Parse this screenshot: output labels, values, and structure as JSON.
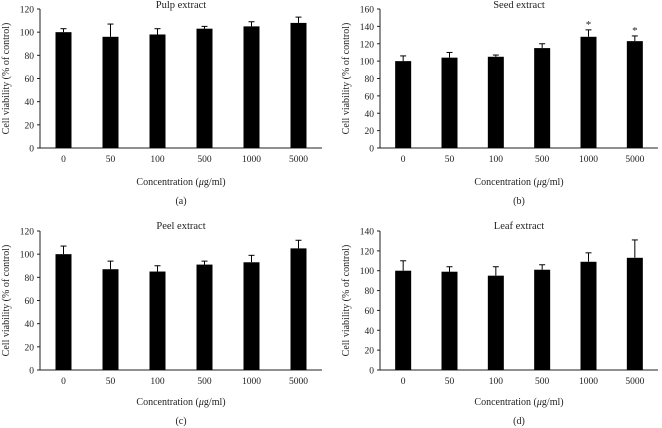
{
  "colors": {
    "bar": "#000000",
    "axis": "#222222",
    "text": "#222222",
    "background": "#ffffff"
  },
  "chart_data": [
    {
      "type": "bar",
      "panel": "(a)",
      "title": "Pulp extract",
      "xlabel": "Concentration (μg/ml)",
      "ylabel": "Cell viability (% of control)",
      "categories": [
        "0",
        "50",
        "100",
        "500",
        "1000",
        "5000"
      ],
      "values": [
        100,
        96,
        98,
        103,
        105,
        108
      ],
      "errors": [
        3,
        11,
        5,
        2,
        4,
        5
      ],
      "annotations": [
        "",
        "",
        "",
        "",
        "",
        ""
      ],
      "ylim": [
        0,
        120
      ],
      "yticks": [
        0,
        20,
        40,
        60,
        80,
        100,
        120
      ]
    },
    {
      "type": "bar",
      "panel": "(b)",
      "title": "Seed extract",
      "xlabel": "Concentration (μg/ml)",
      "ylabel": "Cell viability (% of control)",
      "categories": [
        "0",
        "50",
        "100",
        "500",
        "1000",
        "5000"
      ],
      "values": [
        100,
        104,
        105,
        115,
        128,
        123
      ],
      "errors": [
        6,
        6,
        2,
        5,
        8,
        6
      ],
      "annotations": [
        "",
        "",
        "",
        "",
        "*",
        "*"
      ],
      "ylim": [
        0,
        160
      ],
      "yticks": [
        0,
        20,
        40,
        60,
        80,
        100,
        120,
        140,
        160
      ]
    },
    {
      "type": "bar",
      "panel": "(c)",
      "title": "Peel extract",
      "xlabel": "Concentration (μg/ml)",
      "ylabel": "Cell viability (% of control)",
      "categories": [
        "0",
        "50",
        "100",
        "500",
        "1000",
        "5000"
      ],
      "values": [
        100,
        87,
        85,
        91,
        93,
        105
      ],
      "errors": [
        7,
        7,
        5,
        3,
        6,
        7
      ],
      "annotations": [
        "",
        "",
        "",
        "",
        "",
        ""
      ],
      "ylim": [
        0,
        120
      ],
      "yticks": [
        0,
        20,
        40,
        60,
        80,
        100,
        120
      ]
    },
    {
      "type": "bar",
      "panel": "(d)",
      "title": "Leaf extract",
      "xlabel": "Concentration (μg/ml)",
      "ylabel": "Cell viability (% of control)",
      "categories": [
        "0",
        "50",
        "100",
        "500",
        "1000",
        "5000"
      ],
      "values": [
        100,
        99,
        95,
        101,
        109,
        113
      ],
      "errors": [
        10,
        5,
        9,
        5,
        9,
        18
      ],
      "annotations": [
        "",
        "",
        "",
        "",
        "",
        ""
      ],
      "ylim": [
        0,
        140
      ],
      "yticks": [
        0,
        20,
        40,
        60,
        80,
        100,
        120,
        140
      ]
    }
  ]
}
